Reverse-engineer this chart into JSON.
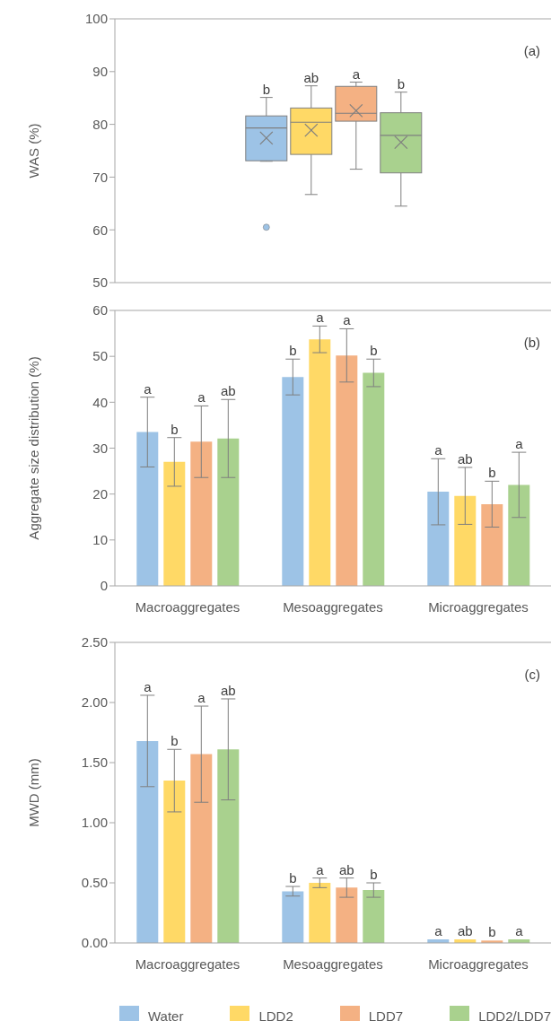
{
  "chart_data": [
    {
      "type": "box",
      "categories": [
        null
      ],
      "ylabel": "WAS (%)",
      "ylim": [
        50,
        100
      ],
      "yticks": [
        50,
        60,
        70,
        80,
        90,
        100
      ],
      "tick_labels": "y",
      "series": [
        {
          "color": "#9dc3e6",
          "boxes": [
            {
              "low": 73.0,
              "q1": 73.1,
              "median": 79.3,
              "q3": 81.6,
              "high": 85.1,
              "mean": 77.4,
              "outliers": [
                60.5
              ]
            }
          ]
        },
        {
          "color": "#ffd966",
          "boxes": [
            {
              "low": 66.7,
              "q1": 74.3,
              "median": 80.4,
              "q3": 83.1,
              "high": 87.3,
              "mean": 78.9
            }
          ]
        },
        {
          "color": "#f4b183",
          "boxes": [
            {
              "low": 71.5,
              "q1": 80.6,
              "median": 82.1,
              "q3": 87.2,
              "high": 88.0,
              "mean": 82.6
            }
          ]
        },
        {
          "color": "#a9d18e",
          "boxes": [
            {
              "low": 64.5,
              "q1": 70.8,
              "median": 77.9,
              "q3": 82.2,
              "high": 86.1,
              "mean": 76.6
            }
          ]
        }
      ],
      "annotations": [
        "(a)",
        "b",
        "ab",
        "a",
        "b"
      ]
    },
    {
      "type": "bar",
      "categories": [
        "Macroaggregates",
        "Mesoaggregates",
        "Microaggregates"
      ],
      "ylabel": "Aggregate size distribution (%)",
      "ylim": [
        0,
        60
      ],
      "yticks": [
        0,
        10,
        20,
        30,
        40,
        50,
        60
      ],
      "series": [
        {
          "color": "#9dc3e6",
          "values": [
            33.5,
            45.5,
            20.5
          ],
          "errors": [
            7.6,
            3.9,
            7.2
          ]
        },
        {
          "color": "#ffd966",
          "values": [
            27.0,
            53.7,
            19.6
          ],
          "errors": [
            5.3,
            2.9,
            6.2
          ]
        },
        {
          "color": "#f4b183",
          "values": [
            31.4,
            50.2,
            17.8
          ],
          "errors": [
            7.8,
            5.8,
            5.0
          ]
        },
        {
          "color": "#a9d18e",
          "values": [
            32.1,
            46.4,
            22.0
          ],
          "errors": [
            8.5,
            3.0,
            7.1
          ]
        }
      ],
      "annotations": [
        "(b)",
        "a",
        "b",
        "a",
        "ab",
        "b",
        "a",
        "a",
        "b",
        "a",
        "ab",
        "b",
        "a"
      ]
    },
    {
      "type": "bar",
      "categories": [
        "Macroaggregates",
        "Mesoaggregates",
        "Microaggregates"
      ],
      "ylabel": "MWD (mm)",
      "ylim": [
        0,
        2.5
      ],
      "yticks": [
        {
          "value": 0,
          "label": "0.00"
        },
        {
          "value": 0.5,
          "label": "0.50"
        },
        {
          "value": 1,
          "label": "1.00"
        },
        {
          "value": 1.5,
          "label": "1.50"
        },
        {
          "value": 2,
          "label": "2.00"
        },
        {
          "value": 2.5,
          "label": "2.50"
        }
      ],
      "legend": "bottom",
      "series": [
        {
          "name": "Water",
          "color": "#9dc3e6",
          "values": [
            1.68,
            0.43,
            0.03
          ],
          "errors": [
            0.38,
            0.04,
            null
          ]
        },
        {
          "name": "LDD2",
          "color": "#ffd966",
          "values": [
            1.35,
            0.5,
            0.03
          ],
          "errors": [
            0.26,
            0.04,
            null
          ]
        },
        {
          "name": "LDD7",
          "color": "#f4b183",
          "values": [
            1.57,
            0.46,
            0.02
          ],
          "errors": [
            0.4,
            0.08,
            null
          ]
        },
        {
          "name": "LDD2/LDD7",
          "color": "#a9d18e",
          "values": [
            1.61,
            0.44,
            0.03
          ],
          "errors": [
            0.42,
            0.06,
            null
          ]
        }
      ],
      "annotations": [
        "(c)",
        "a",
        "b",
        "a",
        "ab",
        "b",
        "a",
        "ab",
        "b",
        "a",
        "ab",
        "b",
        "a"
      ]
    }
  ]
}
